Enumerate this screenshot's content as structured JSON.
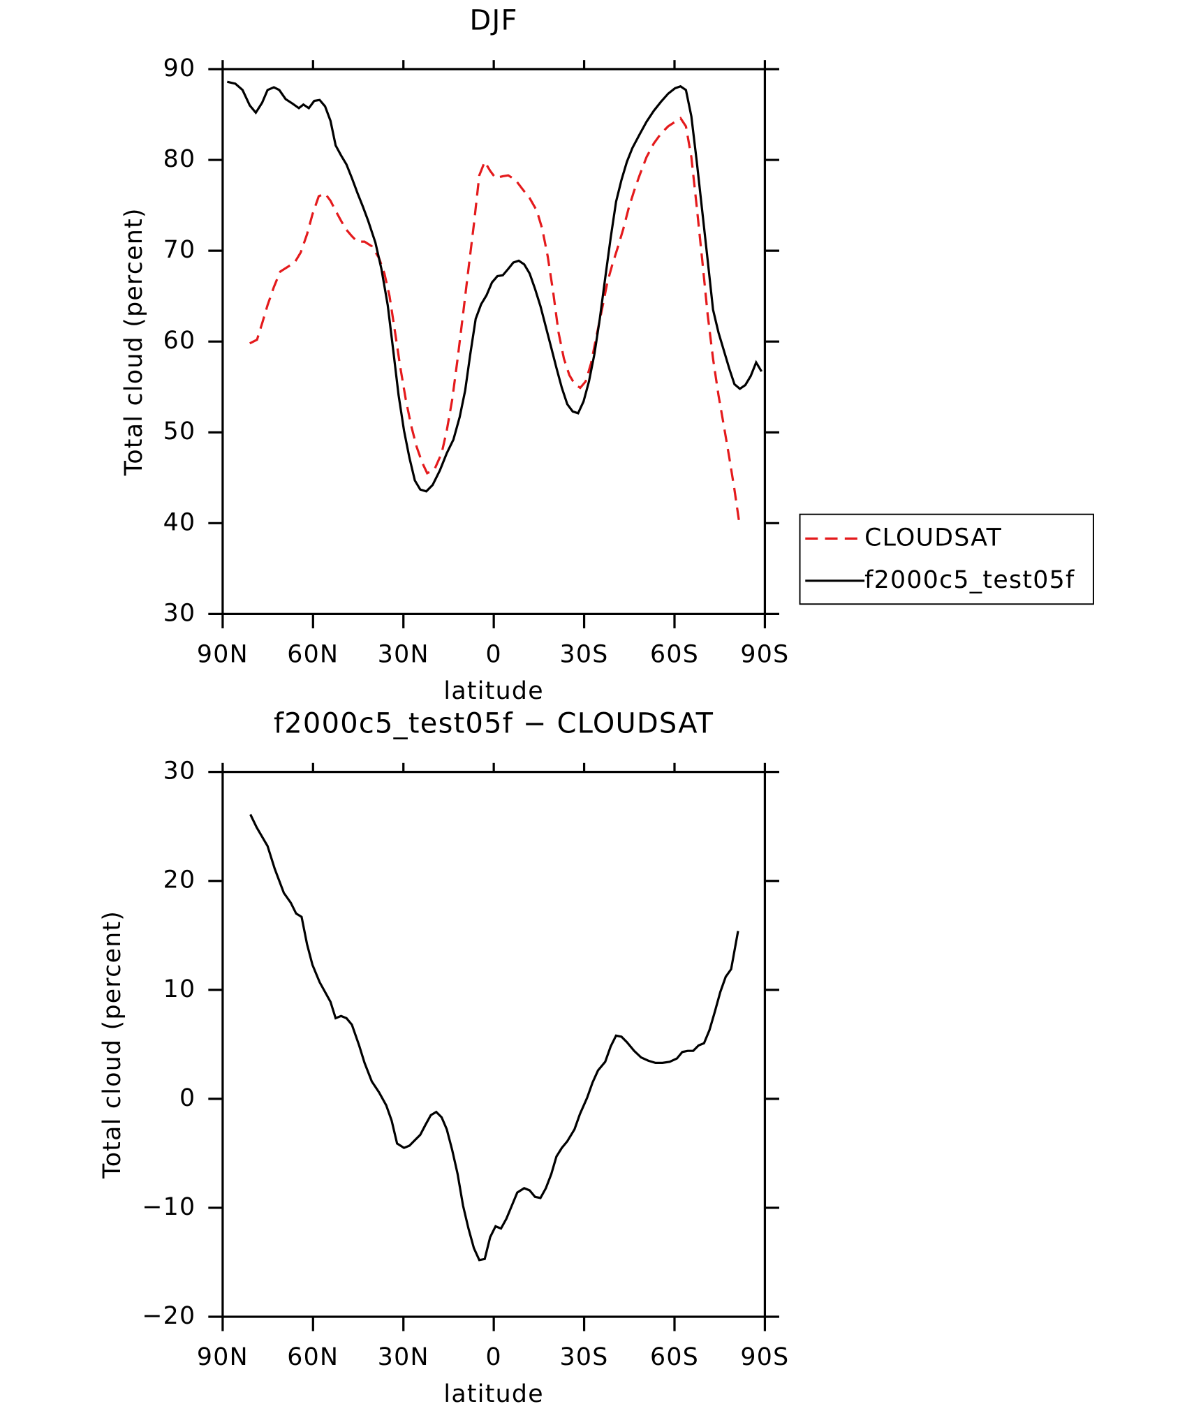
{
  "chart_data": [
    {
      "type": "line",
      "title": "DJF",
      "xlabel": "latitude",
      "ylabel": "Total cloud (percent)",
      "xlim": [
        90,
        -90
      ],
      "xticks": [
        {
          "value": 90,
          "label": "90N"
        },
        {
          "value": 60,
          "label": "60N"
        },
        {
          "value": 30,
          "label": "30N"
        },
        0,
        {
          "value": -30,
          "label": "30S"
        },
        {
          "value": -60,
          "label": "60S"
        },
        {
          "value": -90,
          "label": "90S"
        }
      ],
      "ylim": [
        30,
        90
      ],
      "yticks": [
        30,
        40,
        50,
        60,
        70,
        80,
        90
      ],
      "legend": "outside right",
      "series": [
        {
          "name": "CLOUDSAT",
          "color": "#e41a1c",
          "line_style": "dashed",
          "x": [
            81,
            78.6,
            76.9,
            75.1,
            73,
            70.9,
            68.5,
            66.1,
            64.1,
            62,
            60.2,
            58.1,
            56,
            54.2,
            52.5,
            50.7,
            48.9,
            47.1,
            45.3,
            42.9,
            40.5,
            38.1,
            36.3,
            34.6,
            32.8,
            31,
            29.2,
            27.4,
            25.6,
            23.8,
            22.1,
            19.7,
            17.3,
            15.6,
            13.8,
            12,
            10.2,
            8.4,
            6.6,
            4.8,
            3,
            1.2,
            -0.6,
            -3,
            -4.8,
            -7.2,
            -9.5,
            -11.9,
            -14.3,
            -16.1,
            -17.9,
            -19.7,
            -21.5,
            -23.3,
            -25.1,
            -26.9,
            -28.7,
            -30.5,
            -32.3,
            -34.1,
            -35.9,
            -37.7,
            -39.3,
            -41.2,
            -43,
            -44.8,
            -46.6,
            -48.4,
            -50.7,
            -53.1,
            -55.5,
            -57.9,
            -60.2,
            -62,
            -63.8,
            -65.6,
            -67.4,
            -69.2,
            -71,
            -72.8,
            -74.6,
            -76.4,
            -78.2,
            -79.9,
            -81.7
          ],
          "values": [
            59.8,
            60.2,
            62,
            64,
            66,
            67.7,
            68.2,
            68.7,
            69.8,
            71.8,
            74,
            76,
            76.3,
            75.5,
            74.4,
            73.3,
            72.3,
            71.6,
            71,
            71,
            70.5,
            69.2,
            67.5,
            65,
            61.1,
            57.1,
            53.6,
            50.7,
            48.4,
            46.7,
            45.5,
            45.9,
            47.7,
            50.2,
            53.6,
            58.1,
            63,
            68,
            72.9,
            78.3,
            79.8,
            78.8,
            78,
            78.2,
            78.3,
            77.8,
            76.8,
            75.8,
            74.4,
            72.4,
            69.4,
            65.5,
            61,
            58.1,
            56.3,
            55.3,
            54.9,
            55.6,
            57.6,
            60.6,
            63.5,
            66.5,
            68.4,
            70.4,
            72.4,
            74.7,
            76.6,
            78.3,
            80.3,
            81.8,
            82.9,
            83.7,
            84.2,
            84.6,
            83.7,
            80.3,
            74.8,
            69,
            63,
            58.1,
            54.1,
            50.7,
            47.2,
            43.7,
            39.6
          ]
        },
        {
          "name": "f2000c5_test05f",
          "color": "#000000",
          "line_style": "solid",
          "x": [
            88.5,
            85.8,
            83.4,
            81,
            79,
            76.9,
            75.1,
            73,
            71.2,
            69.1,
            66.8,
            64.7,
            63.2,
            61.4,
            59.6,
            57.8,
            56,
            54.2,
            52.5,
            50.7,
            48.9,
            47.1,
            45.3,
            43.5,
            41.7,
            39.3,
            37.3,
            35.2,
            33.4,
            31.6,
            29.8,
            28,
            26.2,
            24.4,
            22.4,
            20.3,
            17.9,
            15.6,
            13.4,
            11.3,
            9.5,
            7.8,
            6,
            4.2,
            2.4,
            0.6,
            -1.2,
            -3,
            -4.8,
            -6.5,
            -8.3,
            -10.1,
            -11.9,
            -13.7,
            -15.5,
            -17.3,
            -19.1,
            -20.8,
            -22.6,
            -24.4,
            -26.2,
            -28,
            -29.8,
            -31.6,
            -33.4,
            -35.2,
            -37,
            -38.8,
            -40.6,
            -42.4,
            -44.2,
            -46,
            -48.4,
            -50.7,
            -53.1,
            -55.5,
            -57.9,
            -60.2,
            -62,
            -63.8,
            -65.6,
            -67.4,
            -69.2,
            -71,
            -72.8,
            -74.6,
            -76.4,
            -78.2,
            -79.9,
            -81.7,
            -83.5,
            -85.3,
            -87.1,
            -88.9
          ],
          "values": [
            88.6,
            88.4,
            87.7,
            86,
            85.2,
            86.3,
            87.7,
            88,
            87.7,
            86.7,
            86.2,
            85.7,
            86.1,
            85.7,
            86.5,
            86.6,
            85.9,
            84.3,
            81.6,
            80.5,
            79.5,
            78,
            76.4,
            74.9,
            73.3,
            70.9,
            68,
            64,
            59.1,
            54.1,
            50.2,
            47.2,
            44.7,
            43.7,
            43.5,
            44.2,
            45.8,
            47.7,
            49.2,
            51.7,
            54.6,
            58.6,
            62.5,
            64.1,
            65.1,
            66.5,
            67.2,
            67.3,
            68,
            68.7,
            68.9,
            68.5,
            67.5,
            65.8,
            63.9,
            61.6,
            59.3,
            57.1,
            54.9,
            53.1,
            52.3,
            52.1,
            53.4,
            55.6,
            58.6,
            62.5,
            67,
            71.4,
            75.4,
            77.8,
            79.8,
            81.3,
            82.8,
            84.2,
            85.4,
            86.4,
            87.3,
            87.9,
            88.1,
            87.7,
            84.8,
            79.8,
            74.4,
            69,
            63.5,
            61,
            59,
            57,
            55.3,
            54.8,
            55.2,
            56.2,
            57.7,
            56.7
          ]
        }
      ]
    },
    {
      "type": "line",
      "title": "f2000c5_test05f − CLOUDSAT",
      "xlabel": "latitude",
      "ylabel": "Total cloud (percent)",
      "xlim": [
        90,
        -90
      ],
      "xticks": [
        {
          "value": 90,
          "label": "90N"
        },
        {
          "value": 60,
          "label": "60N"
        },
        {
          "value": 30,
          "label": "30N"
        },
        0,
        {
          "value": -30,
          "label": "30S"
        },
        {
          "value": -60,
          "label": "60S"
        },
        {
          "value": -90,
          "label": "90S"
        }
      ],
      "ylim": [
        -20,
        30
      ],
      "yticks": [
        {
          "value": -20,
          "label": "−20"
        },
        {
          "value": -10,
          "label": "−10"
        },
        0,
        10,
        20,
        30
      ],
      "series": [
        {
          "color": "#000000",
          "line_style": "solid",
          "x": [
            80.8,
            78.7,
            75.1,
            72.7,
            69.7,
            67.4,
            65.6,
            63.8,
            62,
            60.2,
            57.8,
            56,
            54.2,
            52.5,
            50.7,
            48.9,
            47.1,
            44.7,
            42.9,
            40.5,
            38.1,
            35.7,
            33.9,
            32.1,
            29.8,
            28,
            26.2,
            24.4,
            22.7,
            20.9,
            19.1,
            17.3,
            15.6,
            13.8,
            12,
            10.2,
            8.4,
            6.6,
            4.8,
            3,
            1.2,
            -0.6,
            -2.4,
            -4.2,
            -6,
            -7.8,
            -10.1,
            -11.9,
            -13.7,
            -15.5,
            -17.3,
            -19.1,
            -20.8,
            -22.6,
            -24.4,
            -26.8,
            -28.6,
            -31,
            -32.8,
            -34.6,
            -37,
            -38.8,
            -40.6,
            -42.4,
            -44.2,
            -46.6,
            -48.9,
            -51.3,
            -53.7,
            -56,
            -58.4,
            -60.8,
            -62.6,
            -64.4,
            -66.2,
            -68,
            -69.8,
            -71.6,
            -73.4,
            -75.2,
            -77,
            -78.8,
            -81.1
          ],
          "values": [
            26.1,
            24.9,
            23.2,
            21.1,
            18.9,
            18,
            17,
            16.7,
            14.2,
            12.3,
            10.7,
            9.8,
            8.9,
            7.4,
            7.6,
            7.4,
            6.8,
            4.9,
            3.3,
            1.6,
            0.6,
            -0.6,
            -2,
            -4.1,
            -4.5,
            -4.3,
            -3.8,
            -3.3,
            -2.4,
            -1.5,
            -1.2,
            -1.7,
            -2.8,
            -4.7,
            -6.9,
            -9.8,
            -11.9,
            -13.7,
            -14.8,
            -14.7,
            -12.7,
            -11.7,
            -11.9,
            -11,
            -9.8,
            -8.6,
            -8.2,
            -8.4,
            -9,
            -9.1,
            -8.2,
            -6.9,
            -5.3,
            -4.5,
            -3.9,
            -2.8,
            -1.4,
            0.1,
            1.5,
            2.6,
            3.4,
            4.8,
            5.8,
            5.7,
            5.2,
            4.4,
            3.8,
            3.5,
            3.3,
            3.3,
            3.4,
            3.7,
            4.3,
            4.4,
            4.4,
            4.9,
            5.1,
            6.3,
            8,
            9.8,
            11.2,
            11.9,
            15.4
          ]
        }
      ]
    }
  ]
}
